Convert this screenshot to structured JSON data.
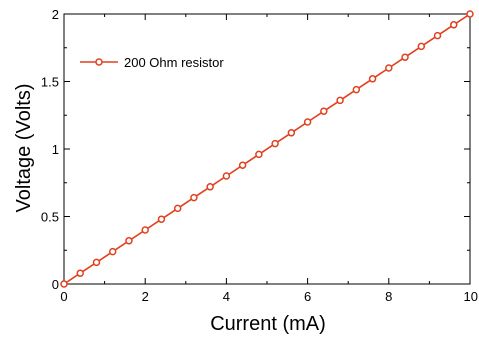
{
  "chart_data": {
    "type": "line",
    "xlabel": "Current (mA)",
    "ylabel": "Voltage (Volts)",
    "xlim": [
      0,
      10
    ],
    "ylim": [
      0,
      2
    ],
    "x_ticks": [
      "0",
      "2",
      "4",
      "6",
      "8",
      "10"
    ],
    "y_ticks": [
      "0",
      "0.5",
      "1",
      "1.5",
      "2"
    ],
    "grid": false,
    "legend_position": "top-left",
    "series": [
      {
        "name": "200 Ohm resistor",
        "color": "#e0401f",
        "marker": "open-circle",
        "x": [
          0,
          0.4,
          0.8,
          1.2,
          1.6,
          2.0,
          2.4,
          2.8,
          3.2,
          3.6,
          4.0,
          4.4,
          4.8,
          5.2,
          5.6,
          6.0,
          6.4,
          6.8,
          7.2,
          7.6,
          8.0,
          8.4,
          8.8,
          9.2,
          9.6,
          10.0
        ],
        "y": [
          0,
          0.08,
          0.16,
          0.24,
          0.32,
          0.4,
          0.48,
          0.56,
          0.64,
          0.72,
          0.8,
          0.88,
          0.96,
          1.04,
          1.12,
          1.2,
          1.28,
          1.36,
          1.44,
          1.52,
          1.6,
          1.68,
          1.76,
          1.84,
          1.92,
          2.0
        ]
      }
    ]
  }
}
